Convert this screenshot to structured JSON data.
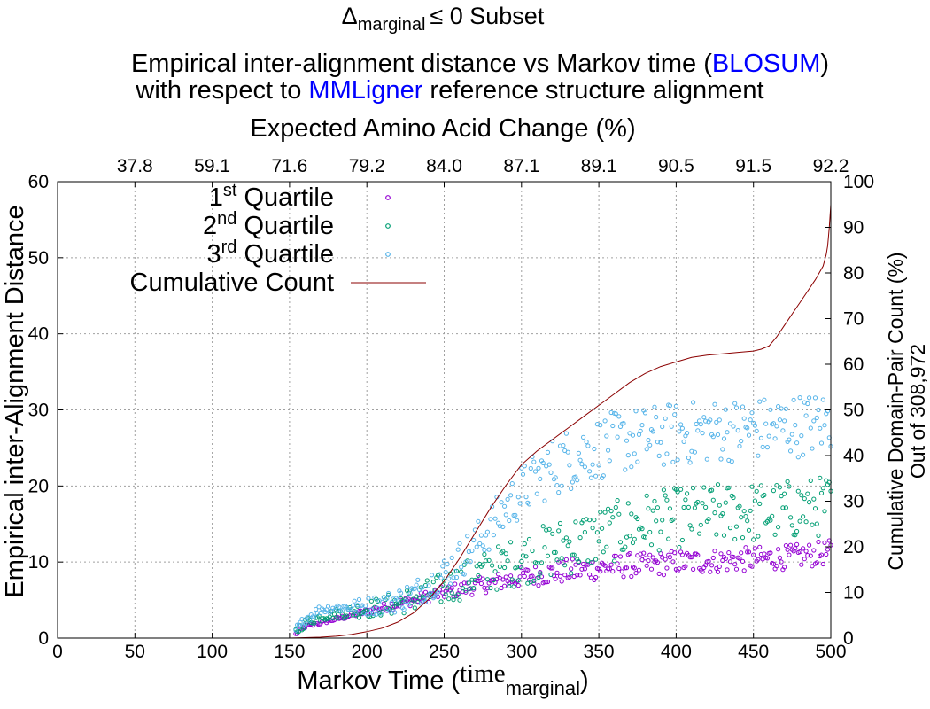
{
  "chart_data": {
    "type": "scatter",
    "title": {
      "line0_prefix": "Δ",
      "line0_sub": "marginal",
      "line0_rest": "≤ 0 Subset",
      "line1_prefix": "Empirical inter-alignment distance vs Markov time (",
      "line1_highlight": "BLOSUM",
      "line1_suffix": ")",
      "line2_prefix": "with respect to ",
      "line2_highlight": "MMLigner",
      "line2_suffix": " reference structure alignment"
    },
    "highlight_color": "#0000ff",
    "xlabel": {
      "prefix": "Markov Time (",
      "main": "time",
      "sub": "marginal",
      "suffix": ")"
    },
    "ylabel": "Empirical inter-Alignment Distance",
    "y2label_line1": "Cumulative Domain-Pair Count (%)",
    "y2label_line2": "Out of 308,972",
    "x2label": "Expected Amino Acid Change (%)",
    "xlim": [
      0,
      500
    ],
    "ylim": [
      0,
      60
    ],
    "y2lim": [
      0,
      100
    ],
    "grid": true,
    "legend_position": "top-left",
    "x_ticks": [
      "0",
      "50",
      "100",
      "150",
      "200",
      "250",
      "300",
      "350",
      "400",
      "450",
      "500"
    ],
    "y_ticks": [
      "0",
      "10",
      "20",
      "30",
      "40",
      "50",
      "60"
    ],
    "y2_ticks": [
      "0",
      "10",
      "20",
      "30",
      "40",
      "50",
      "60",
      "70",
      "80",
      "90",
      "100"
    ],
    "x2_ticks": [
      "37.8",
      "59.1",
      "71.6",
      "79.2",
      "84.0",
      "87.1",
      "89.1",
      "90.5",
      "91.5",
      "92.2"
    ],
    "x2_tick_positions": [
      50,
      100,
      150,
      200,
      250,
      300,
      350,
      400,
      450,
      500
    ],
    "legend": [
      {
        "prefix": "1",
        "sup": "st",
        "rest": " Quartile",
        "kind": "points"
      },
      {
        "prefix": "2",
        "sup": "nd",
        "rest": " Quartile",
        "kind": "points"
      },
      {
        "prefix": "3",
        "sup": "rd",
        "rest": " Quartile",
        "kind": "points"
      },
      {
        "prefix": "Cumulative Count",
        "sup": "",
        "rest": "",
        "kind": "line"
      }
    ],
    "series": [
      {
        "color": "#9400d3",
        "x": [
          154,
          160,
          170,
          180,
          190,
          200,
          210,
          220,
          230,
          240,
          250,
          260,
          270,
          280,
          290,
          300,
          310,
          320,
          330,
          340,
          350,
          360,
          370,
          380,
          390,
          400,
          410,
          420,
          430,
          440,
          450,
          460,
          470,
          480,
          490,
          500
        ],
        "y": [
          0.5,
          1.5,
          2.0,
          2.5,
          3.0,
          3.5,
          4.0,
          4.5,
          5.0,
          5.5,
          6.0,
          6.4,
          6.8,
          7.2,
          7.6,
          8.0,
          8.3,
          8.6,
          8.8,
          9.0,
          9.2,
          9.4,
          9.6,
          9.6,
          9.8,
          10.0,
          10.0,
          10.1,
          10.2,
          10.3,
          10.4,
          10.5,
          10.6,
          10.8,
          11.0,
          11.3
        ],
        "scatter": 1.6
      },
      {
        "color": "#009e73",
        "x": [
          154,
          160,
          170,
          180,
          190,
          200,
          210,
          220,
          230,
          240,
          250,
          260,
          270,
          280,
          290,
          300,
          310,
          320,
          330,
          340,
          350,
          360,
          370,
          380,
          390,
          400,
          410,
          420,
          430,
          440,
          450,
          460,
          470,
          480,
          490,
          500
        ],
        "y": [
          0.8,
          2.0,
          2.8,
          3.2,
          3.5,
          3.8,
          4.2,
          4.6,
          5.2,
          5.8,
          6.6,
          7.4,
          8.2,
          8.9,
          9.6,
          10.3,
          11.0,
          11.6,
          12.2,
          12.8,
          13.4,
          14.0,
          14.6,
          15.2,
          15.5,
          15.8,
          16.0,
          16.2,
          16.4,
          16.5,
          16.5,
          16.6,
          16.8,
          17.0,
          17.2,
          17.5
        ],
        "scatter": 4.0
      },
      {
        "color": "#56b4e9",
        "x": [
          154,
          160,
          170,
          180,
          190,
          200,
          210,
          220,
          230,
          240,
          250,
          260,
          270,
          280,
          290,
          300,
          310,
          320,
          330,
          340,
          350,
          360,
          370,
          380,
          390,
          400,
          410,
          420,
          430,
          440,
          450,
          460,
          470,
          480,
          490,
          500
        ],
        "y": [
          1.0,
          2.5,
          3.8,
          4.0,
          4.1,
          4.2,
          4.5,
          5.0,
          5.8,
          7.0,
          8.5,
          10.3,
          12.3,
          14.6,
          17.0,
          19.3,
          21.0,
          22.5,
          23.5,
          24.3,
          25.0,
          25.6,
          26.0,
          26.3,
          26.6,
          26.8,
          27.0,
          27.2,
          27.3,
          27.4,
          27.5,
          27.6,
          27.8,
          28.0,
          28.2,
          28.5
        ],
        "scatter": 4.2
      }
    ],
    "cumulative": {
      "color": "#8b0000",
      "x": [
        150,
        160,
        170,
        180,
        190,
        200,
        210,
        220,
        230,
        240,
        250,
        260,
        270,
        280,
        290,
        300,
        310,
        320,
        330,
        340,
        350,
        360,
        370,
        380,
        390,
        400,
        410,
        420,
        430,
        440,
        450,
        455,
        460,
        465,
        470,
        475,
        480,
        485,
        490,
        495,
        497,
        498,
        499,
        500
      ],
      "y": [
        0,
        0.1,
        0.2,
        0.4,
        0.8,
        1.4,
        2.2,
        3.5,
        5.5,
        8.5,
        12.5,
        17.5,
        23,
        28.5,
        33.5,
        38,
        41,
        43.5,
        46,
        48.5,
        51,
        53.5,
        56,
        58,
        59.5,
        60.5,
        61.5,
        62,
        62.3,
        62.6,
        62.9,
        63.3,
        64,
        66,
        68.5,
        71,
        73.5,
        76,
        78.5,
        81.5,
        84,
        86,
        90,
        95
      ]
    }
  }
}
